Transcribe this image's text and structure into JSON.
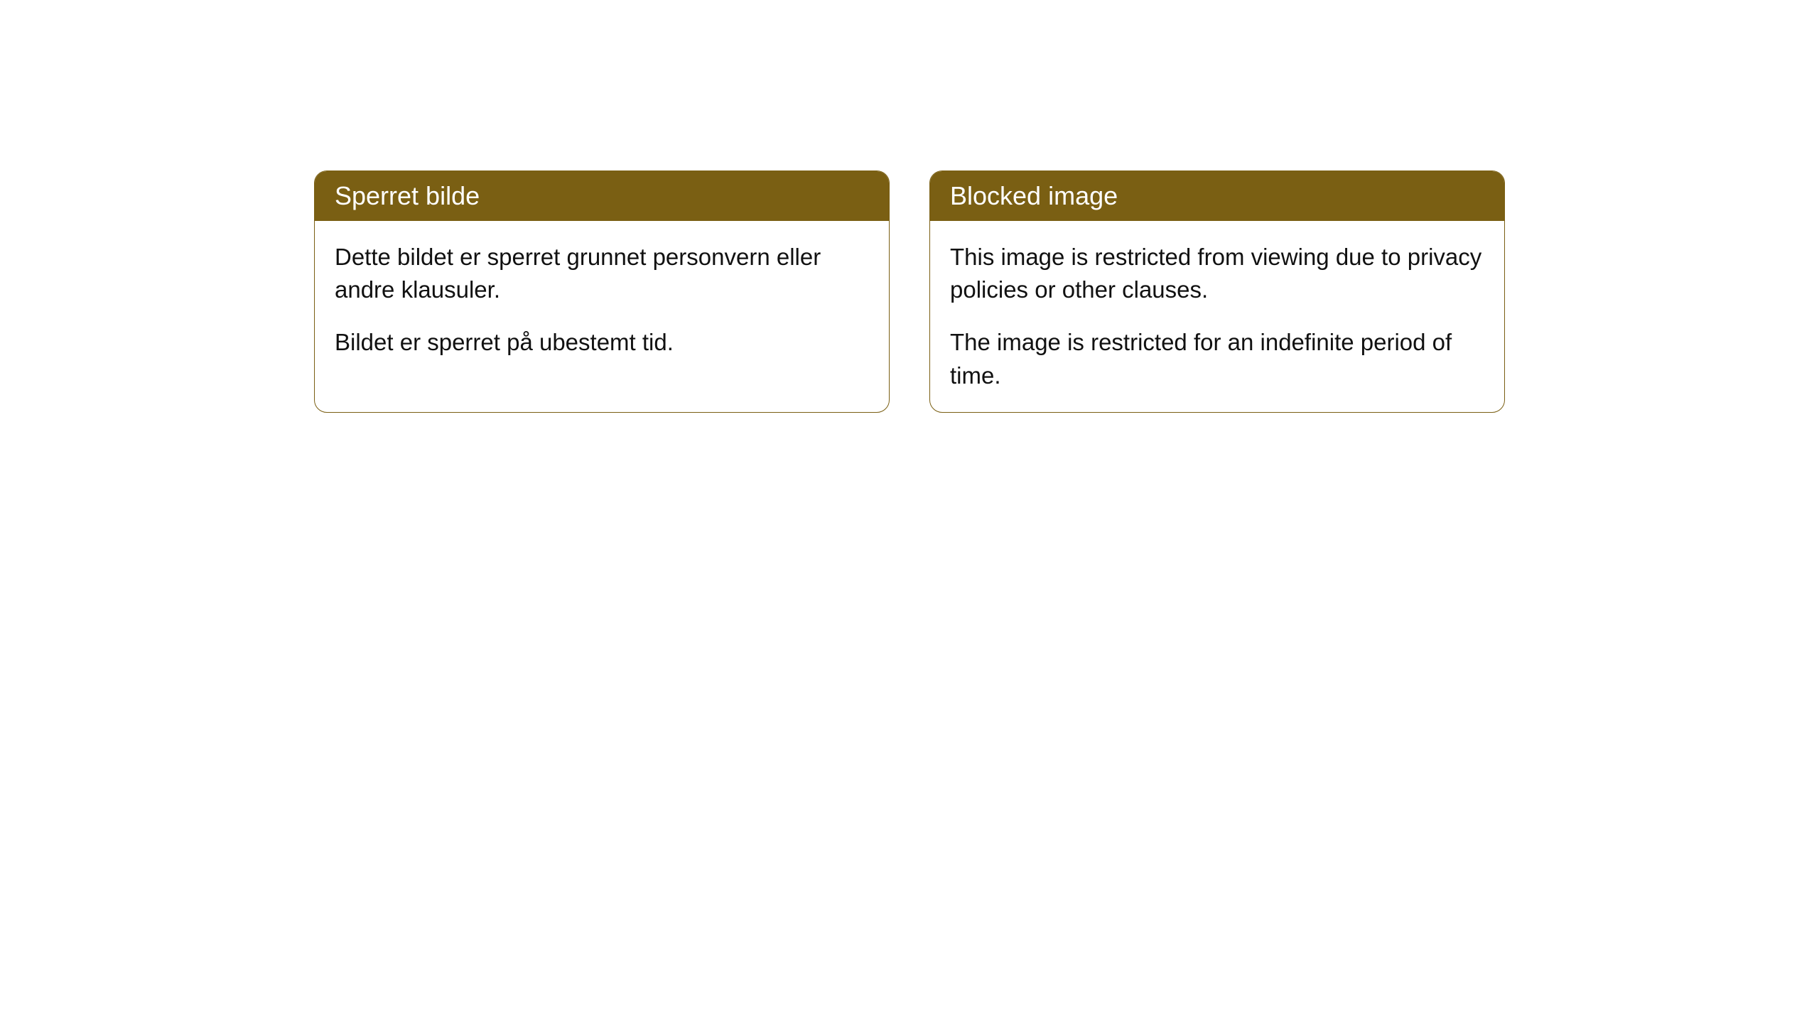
{
  "cards": [
    {
      "title": "Sperret bilde",
      "paragraph1": "Dette bildet er sperret grunnet personvern eller andre klausuler.",
      "paragraph2": "Bildet er sperret på ubestemt tid."
    },
    {
      "title": "Blocked image",
      "paragraph1": "This image is restricted from viewing due to privacy policies or other clauses.",
      "paragraph2": "The image is restricted for an indefinite period of time."
    }
  ],
  "styling": {
    "header_bg": "#7a5f13",
    "header_text_color": "#ffffff",
    "body_bg": "#ffffff",
    "border_color": "#7a5f13",
    "body_text_color": "#111111",
    "border_radius": 18,
    "title_fontsize": 36,
    "body_fontsize": 33
  }
}
